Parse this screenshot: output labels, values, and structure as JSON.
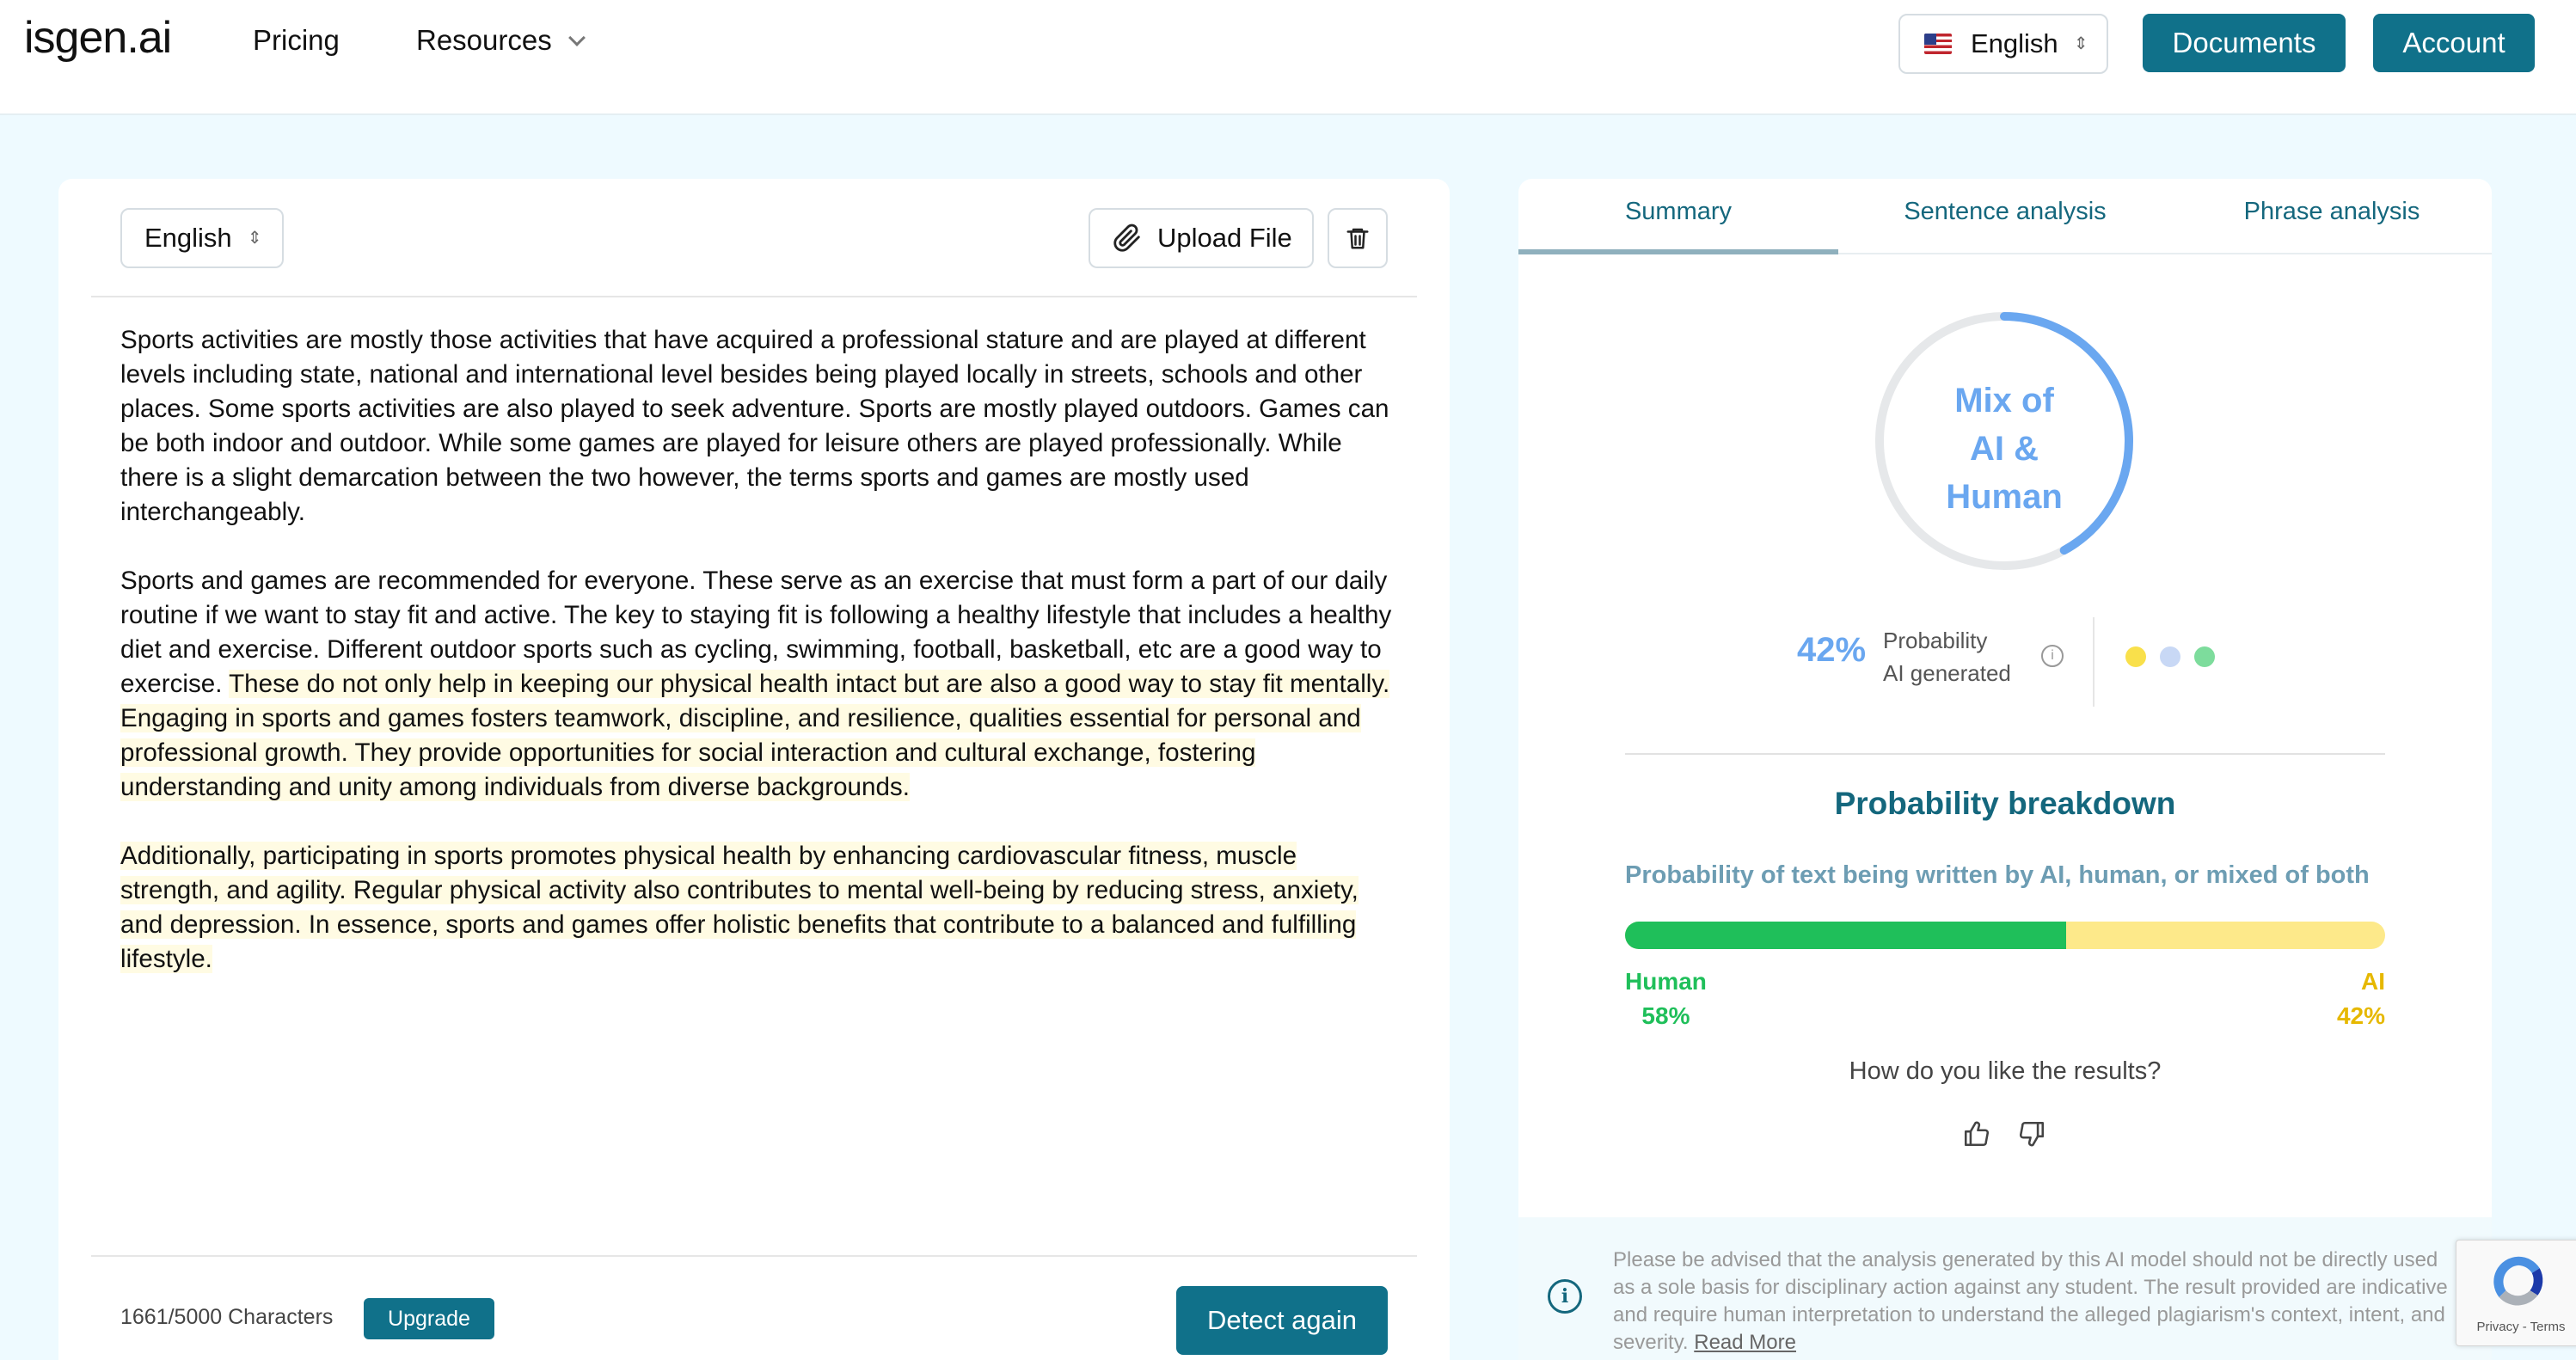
{
  "nav": {
    "logo": "isgen.ai",
    "pricing": "Pricing",
    "resources": "Resources",
    "language": "English",
    "documents": "Documents",
    "account": "Account"
  },
  "editor": {
    "language": "English",
    "upload_label": "Upload File",
    "paragraphs": [
      {
        "plain": "Sports activities are mostly those activities that have acquired a professional stature and are played at different levels including state, national and international level besides being played locally in streets, schools and other places. Some sports activities are also played to seek adventure. Sports are mostly played outdoors. Games can be both indoor and outdoor. While some games are played for leisure others are played professionally. While there is a slight demarcation between the two however, the terms sports and games are mostly used interchangeably.",
        "highlighted": ""
      },
      {
        "plain": "Sports and games are recommended for everyone. These serve as an exercise that must form a part of our daily routine if we want to stay fit and active. The key to staying fit is following a healthy lifestyle that includes a healthy diet and exercise. Different outdoor sports such as cycling, swimming, football, basketball, etc are a good way to exercise. ",
        "highlighted": "These do not only help in keeping our physical health intact but are also a good way to stay fit mentally. Engaging in sports and games fosters teamwork, discipline, and resilience, qualities essential for personal and professional growth. They provide opportunities for social interaction and cultural exchange, fostering understanding and unity among individuals from diverse backgrounds."
      },
      {
        "plain": "",
        "highlighted": "Additionally, participating in sports promotes physical health by enhancing cardiovascular fitness, muscle strength, and agility. Regular physical activity also contributes to mental well-being by reducing stress, anxiety, and depression. In essence, sports and games offer holistic benefits that contribute to a balanced and fulfilling lifestyle."
      }
    ],
    "char_count": "1661/5000 Characters",
    "upgrade_label": "Upgrade",
    "detect_label": "Detect again"
  },
  "results": {
    "tabs": [
      "Summary",
      "Sentence analysis",
      "Phrase analysis"
    ],
    "active_tab": "Summary",
    "verdict": [
      "Mix of",
      "AI &",
      "Human"
    ],
    "ring_fraction": 0.42,
    "ai_percent": "42%",
    "prob_label_1": "Probability",
    "prob_label_2": "AI generated",
    "dot_colors": [
      "#f9e04b",
      "#c8d8f5",
      "#7ddc9c"
    ],
    "breakdown_title": "Probability breakdown",
    "breakdown_subtitle": "Probability of text being written by AI, human, or mixed of both",
    "human_fraction": 0.58,
    "human_label": "Human",
    "human_percent": "58%",
    "ai_label": "AI",
    "ai_percent_bar": "42%",
    "feedback_question": "How do you like the results?",
    "disclaimer": "Please be advised that the analysis generated by this AI model should not be directly used as a sole basis for disciplinary action against any student. The result provided are indicative and require human interpretation to understand the alleged plagiarism's context, intent, and severity.",
    "read_more": "Read More"
  },
  "recaptcha": {
    "text": "Privacy - Terms"
  },
  "colors": {
    "accent": "#10718a",
    "ring": "#6aa7f0",
    "human": "#1fbf5a",
    "ai": "#fde98a"
  }
}
